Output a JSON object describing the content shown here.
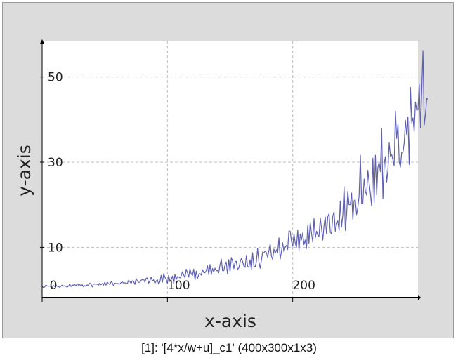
{
  "caption": "[1]: '[4*x/w+u]_c1' (400x300x1x3)",
  "colors": {
    "frame_background": "#dcdcdc",
    "plot_background": "#ffffff",
    "series_line": "#5f60b2",
    "grid": "#bdbdbd",
    "axis": "#000000"
  },
  "chart_data": {
    "type": "line",
    "xlabel": "x-axis",
    "ylabel": "y-axis",
    "xlim": [
      0,
      300
    ],
    "ylim": [
      -1.8,
      58.5
    ],
    "x_ticks": [
      0,
      100,
      200
    ],
    "x_tick_labels": [
      "0",
      "100",
      "200"
    ],
    "y_ticks": [
      10,
      30,
      50
    ],
    "y_tick_labels": [
      "10",
      "30",
      "50"
    ],
    "grid": true,
    "legend": "none",
    "series": [
      {
        "x_start": 0,
        "x_step": 1,
        "values": [
          0.86,
          0.57,
          0.68,
          1.18,
          0.93,
          0.9,
          0.9,
          0.73,
          0.55,
          1.05,
          0.84,
          1.1,
          0.87,
          0.77,
          0.62,
          0.91,
          1.13,
          0.87,
          0.98,
          0.85,
          0.65,
          0.9,
          1.39,
          0.79,
          1.15,
          1.1,
          1.28,
          0.9,
          1.44,
          1.1,
          1.23,
          1.03,
          1.2,
          0.77,
          1.01,
          0.81,
          1.18,
          1.08,
          1.6,
          1.34,
          0.7,
          1.34,
          1.42,
          1.33,
          1.37,
          1.12,
          1.59,
          1.21,
          1.49,
          1.14,
          1.83,
          1.12,
          1.87,
          1.46,
          1.29,
          1.9,
          1.7,
          0.92,
          1.58,
          1.47,
          1.56,
          1.42,
          1.4,
          1.72,
          1.88,
          1.61,
          1.67,
          1.58,
          1.46,
          2.27,
          2.01,
          1.51,
          2.16,
          2.0,
          1.3,
          2.68,
          2.07,
          1.78,
          1.8,
          2.29,
          2.41,
          2.53,
          1.82,
          2.72,
          2.82,
          1.57,
          2.14,
          2.96,
          2.11,
          2.38,
          1.51,
          2.06,
          2.4,
          1.39,
          1.85,
          3.46,
          1.79,
          3.83,
          2.97,
          2.52,
          1.52,
          3.44,
          2.12,
          2.42,
          3.26,
          1.51,
          3.66,
          2.42,
          3.13,
          3.02,
          2.83,
          3.32,
          4.26,
          3.55,
          2.85,
          4.86,
          4.01,
          3.01,
          4.97,
          3.78,
          3.37,
          4.88,
          2.41,
          4.39,
          2.69,
          3.52,
          3.83,
          3.47,
          4.77,
          4.08,
          4.02,
          4.55,
          5.66,
          3.58,
          5.97,
          3.61,
          5.04,
          4.23,
          5.1,
          4.49,
          4.55,
          4.02,
          5.92,
          7.25,
          4.54,
          4.51,
          5.92,
          6.55,
          3.71,
          7.12,
          4.3,
          7.62,
          6.76,
          4.98,
          6.58,
          6.73,
          4.8,
          5.14,
          6.57,
          7.45,
          6.73,
          5.64,
          5.31,
          8.1,
          5.51,
          5.3,
          7.07,
          4.8,
          8.74,
          5.64,
          5.39,
          6.66,
          9.77,
          6.61,
          5.1,
          6.98,
          8.93,
          8.69,
          9.12,
          8.8,
          7.66,
          9.19,
          10.86,
          7.99,
          7.18,
          9.58,
          8.59,
          9.4,
          8.72,
          12.26,
          7.25,
          9.02,
          11.07,
          8.9,
          10.04,
          10.48,
          9.47,
          13.89,
          13.79,
          11.4,
          10.24,
          13.16,
          11.03,
          9.98,
          14.1,
          9.24,
          13.15,
          11.72,
          13.37,
          10.64,
          11.73,
          9.73,
          15.28,
          10.93,
          15.89,
          13.32,
          11.23,
          16.78,
          12.22,
          13.8,
          12.92,
          12.56,
          16.94,
          14.48,
          11.68,
          15.24,
          17.13,
          13.2,
          17.16,
          17.91,
          13.51,
          13.18,
          17.3,
          18.39,
          13.76,
          15.44,
          16.24,
          13.94,
          20.88,
          14.79,
          17.53,
          24.26,
          13.97,
          17.63,
          23.14,
          20.02,
          20.03,
          22.75,
          16.41,
          20.96,
          21.11,
          17.66,
          19.36,
          22.09,
          31.63,
          20.25,
          20.35,
          26.05,
          23.15,
          22.23,
          28.08,
          25.08,
          22.72,
          19.72,
          30.95,
          20.58,
          31.62,
          22.33,
          28.73,
          30.05,
          27.78,
          37.9,
          21.41,
          29.53,
          31.31,
          25.32,
          28.12,
          34.54,
          31.4,
          31.84,
          30.52,
          29.15,
          41.95,
          35.53,
          38.92,
          30.04,
          28.83,
          32.26,
          32.32,
          34.56,
          39.79,
          36.45,
          40.56,
          29.43,
          47.55,
          39.25,
          40.41,
          37.2,
          44.1,
          42.18,
          42.4,
          48.29,
          38.0,
          47.11,
          56.2,
          38.74,
          41.39,
          44.99,
          44.78
        ]
      }
    ]
  }
}
